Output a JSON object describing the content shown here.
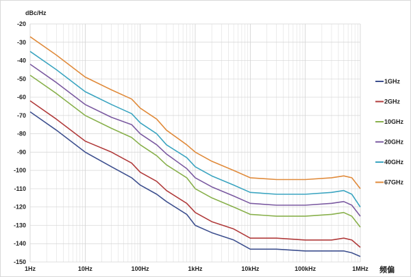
{
  "chart_data": {
    "type": "line",
    "title": "",
    "ylabel": "dBc/Hz",
    "xlabel": "频偏",
    "x_scale": "log",
    "xlim": [
      1,
      1000000
    ],
    "ylim": [
      -150,
      -20
    ],
    "grid": true,
    "legend_position": "right",
    "x_tick_labels": [
      "1Hz",
      "10Hz",
      "100Hz",
      "1kHz",
      "10kHz",
      "100kHz",
      "1MHz"
    ],
    "y_ticks": [
      -20,
      -30,
      -40,
      -50,
      -60,
      -70,
      -80,
      -90,
      -100,
      -110,
      -120,
      -130,
      -140,
      -150
    ],
    "x": [
      1,
      3,
      10,
      30,
      70,
      100,
      200,
      300,
      700,
      1000,
      2000,
      5000,
      10000,
      30000,
      100000,
      300000,
      500000,
      700000,
      1000000
    ],
    "series": [
      {
        "name": "1GHz",
        "color": "#3d4f8e",
        "values": [
          -68,
          -78,
          -90,
          -98,
          -104,
          -108,
          -113,
          -117,
          -124,
          -130,
          -134,
          -138,
          -143,
          -143,
          -144,
          -144,
          -144,
          -145,
          -147
        ]
      },
      {
        "name": "2GHz",
        "color": "#b03a3a",
        "values": [
          -62,
          -72,
          -84,
          -90,
          -96,
          -101,
          -106,
          -111,
          -118,
          -123,
          -128,
          -132,
          -137,
          -137,
          -138,
          -138,
          -137,
          -138,
          -142
        ]
      },
      {
        "name": "10GHz",
        "color": "#88b04b",
        "values": [
          -48,
          -58,
          -70,
          -77,
          -82,
          -86,
          -92,
          -97,
          -104,
          -110,
          -115,
          -120,
          -124,
          -125,
          -125,
          -124,
          -123,
          -125,
          -131
        ]
      },
      {
        "name": "20GHz",
        "color": "#7a59a0",
        "values": [
          -42,
          -52,
          -64,
          -71,
          -75,
          -80,
          -86,
          -91,
          -99,
          -104,
          -109,
          -114,
          -118,
          -119,
          -119,
          -118,
          -117,
          -119,
          -125
        ]
      },
      {
        "name": "40GHz",
        "color": "#3aa4c0",
        "values": [
          -35,
          -45,
          -57,
          -64,
          -69,
          -74,
          -80,
          -86,
          -93,
          -98,
          -103,
          -108,
          -112,
          -113,
          -113,
          -112,
          -111,
          -113,
          -120
        ]
      },
      {
        "name": "67GHz",
        "color": "#e08a3a",
        "values": [
          -27,
          -37,
          -49,
          -56,
          -61,
          -66,
          -72,
          -78,
          -86,
          -90,
          -95,
          -100,
          -104,
          -105,
          -105,
          -104,
          -103,
          -104,
          -110
        ]
      }
    ]
  }
}
